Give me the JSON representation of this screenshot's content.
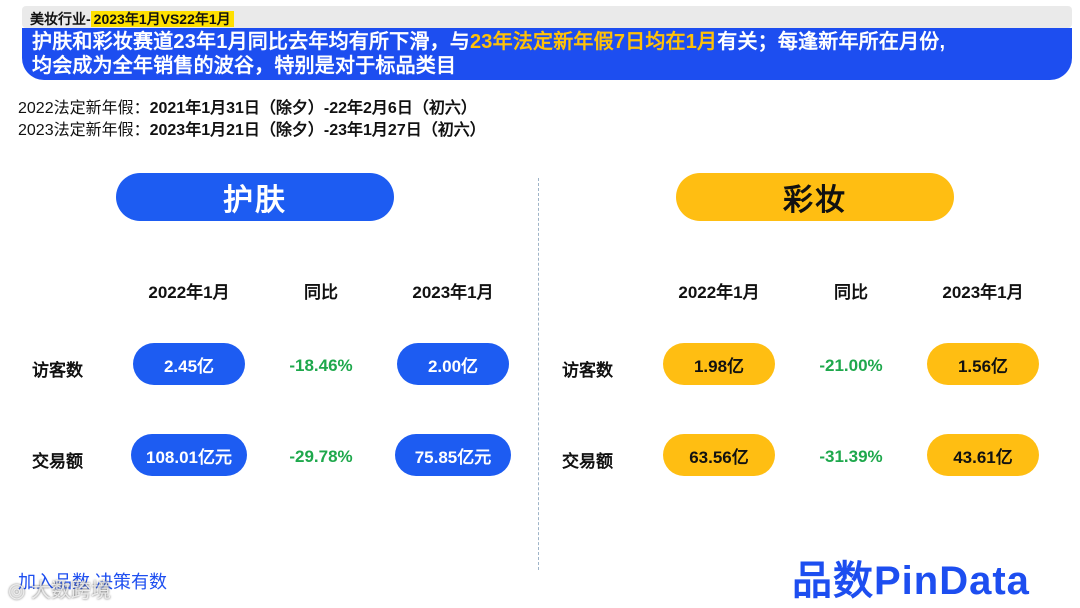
{
  "header": {
    "tag_prefix": "美妆行业-",
    "tag_highlight": "2023年1月VS22年1月",
    "banner_part1": "护肤和彩妆赛道23年1月同比去年均有所下滑，与",
    "banner_highlight": "23年法定新年假7日均在1月",
    "banner_part2": "有关；每逢新年所在月份,",
    "banner_line2": "均会成为全年销售的波谷，特别是对于标品类目"
  },
  "holidays": [
    {
      "label": "2022法定新年假：",
      "value": "2021年1月31日（除夕）-22年2月6日（初六）"
    },
    {
      "label": "2023法定新年假：",
      "value": "2023年1月21日（除夕）-23年1月27日（初六）"
    }
  ],
  "panels": {
    "skincare": {
      "title": "护肤",
      "color": "#1d5cf2",
      "col_2022": "2022年1月",
      "col_yoy": "同比",
      "col_2023": "2023年1月",
      "rows": [
        {
          "label": "访客数",
          "v2022": "2.45亿",
          "yoy": "-18.46%",
          "v2023": "2.00亿"
        },
        {
          "label": "交易额",
          "v2022": "108.01亿元",
          "yoy": "-29.78%",
          "v2023": "75.85亿元"
        }
      ]
    },
    "makeup": {
      "title": "彩妆",
      "color": "#ffbe12",
      "col_2022": "2022年1月",
      "col_yoy": "同比",
      "col_2023": "2023年1月",
      "rows": [
        {
          "label": "访客数",
          "v2022": "1.98亿",
          "yoy": "-21.00%",
          "v2023": "1.56亿"
        },
        {
          "label": "交易额",
          "v2022": "63.56亿",
          "yoy": "-31.39%",
          "v2023": "43.61亿"
        }
      ]
    }
  },
  "footer": {
    "left_text": "加入品数 决策有数",
    "watermark": "◎ 大数跨境",
    "logo": "品数PinData"
  }
}
